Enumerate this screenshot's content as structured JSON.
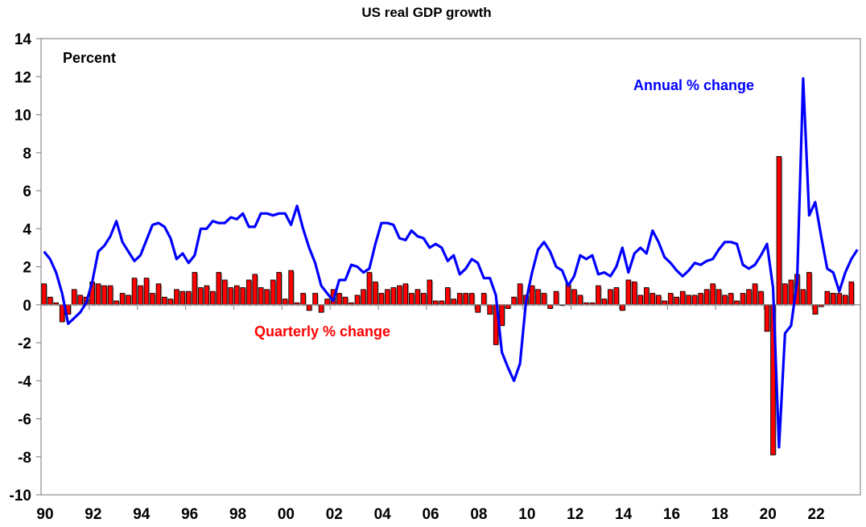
{
  "chart_data": {
    "type": "bar+line",
    "title": "US real GDP growth",
    "ylabel": "Percent",
    "xlabel": "",
    "ylim": [
      -10,
      14
    ],
    "yticks": [
      14,
      12,
      10,
      8,
      6,
      4,
      2,
      0,
      -2,
      -4,
      -6,
      -8,
      -10
    ],
    "ytick_labels": [
      "14",
      "12",
      "10",
      "8",
      "6",
      "4",
      "2",
      "0",
      "-2",
      "-4",
      "-6",
      "-8",
      "-10"
    ],
    "xlim": [
      1990,
      2024
    ],
    "xticks": [
      1990,
      1992,
      1994,
      1996,
      1998,
      2000,
      2002,
      2004,
      2006,
      2008,
      2010,
      2012,
      2014,
      2016,
      2018,
      2020,
      2022,
      2024
    ],
    "xtick_labels": [
      "90",
      "92",
      "94",
      "96",
      "98",
      "00",
      "02",
      "04",
      "06",
      "08",
      "10",
      "12",
      "14",
      "16",
      "18",
      "20",
      "22",
      ""
    ],
    "grid": false,
    "start_quarter": "1990Q1",
    "end_quarter": "2023Q3",
    "series": [
      {
        "name": "Quarterly % change",
        "kind": "bar",
        "color": "#ff0000",
        "label_position": "below-zero-left-center",
        "values": [
          1.1,
          0.4,
          0.1,
          -0.9,
          -0.5,
          0.8,
          0.5,
          0.4,
          1.2,
          1.1,
          1.0,
          1.0,
          0.2,
          0.6,
          0.5,
          1.4,
          1.0,
          1.4,
          0.6,
          1.1,
          0.4,
          0.3,
          0.8,
          0.7,
          0.7,
          1.7,
          0.9,
          1.0,
          0.7,
          1.7,
          1.3,
          0.9,
          1.0,
          0.9,
          1.3,
          1.6,
          0.9,
          0.8,
          1.3,
          1.7,
          0.3,
          1.8,
          0.1,
          0.6,
          -0.3,
          0.6,
          -0.4,
          0.3,
          0.8,
          0.6,
          0.4,
          0.1,
          0.5,
          0.8,
          1.7,
          1.2,
          0.6,
          0.8,
          0.9,
          1.0,
          1.1,
          0.6,
          0.8,
          0.6,
          1.3,
          0.2,
          0.2,
          0.9,
          0.3,
          0.6,
          0.6,
          0.6,
          -0.4,
          0.6,
          -0.5,
          -2.1,
          -1.1,
          -0.2,
          0.4,
          1.1,
          0.5,
          1.0,
          0.8,
          0.6,
          -0.2,
          0.7,
          0.0,
          1.1,
          0.8,
          0.5,
          0.1,
          0.1,
          1.0,
          0.3,
          0.8,
          0.9,
          -0.3,
          1.3,
          1.2,
          0.5,
          0.9,
          0.6,
          0.5,
          0.2,
          0.6,
          0.4,
          0.7,
          0.5,
          0.5,
          0.6,
          0.8,
          1.1,
          0.8,
          0.5,
          0.6,
          0.2,
          0.6,
          0.8,
          1.1,
          0.7,
          -1.4,
          -7.9,
          7.8,
          1.1,
          1.3,
          1.6,
          0.8,
          1.7,
          -0.5,
          -0.1,
          0.7,
          0.6,
          0.6,
          0.5,
          1.2
        ]
      },
      {
        "name": "Annual % change",
        "kind": "line",
        "color": "#0000ff",
        "label_position": "top-right",
        "values": [
          2.8,
          2.4,
          1.7,
          0.6,
          -1.0,
          -0.7,
          -0.4,
          0.1,
          1.2,
          2.8,
          3.1,
          3.6,
          4.4,
          3.3,
          2.8,
          2.3,
          2.6,
          3.4,
          4.2,
          4.3,
          4.1,
          3.5,
          2.4,
          2.7,
          2.2,
          2.6,
          4.0,
          4.0,
          4.4,
          4.3,
          4.3,
          4.6,
          4.5,
          4.8,
          4.1,
          4.1,
          4.8,
          4.8,
          4.7,
          4.8,
          4.8,
          4.2,
          5.2,
          4.0,
          3.0,
          2.2,
          1.0,
          0.6,
          0.2,
          1.3,
          1.3,
          2.1,
          2.0,
          1.7,
          1.9,
          3.2,
          4.3,
          4.3,
          4.2,
          3.5,
          3.4,
          3.9,
          3.6,
          3.5,
          3.0,
          3.2,
          3.0,
          2.3,
          2.6,
          1.6,
          1.9,
          2.4,
          2.2,
          1.4,
          1.4,
          0.5,
          -2.5,
          -3.3,
          -4.0,
          -3.1,
          0.2,
          1.7,
          2.9,
          3.3,
          2.8,
          2.0,
          1.8,
          1.0,
          1.5,
          2.6,
          2.4,
          2.6,
          1.6,
          1.7,
          1.5,
          2.0,
          3.0,
          1.7,
          2.7,
          3.0,
          2.7,
          3.9,
          3.3,
          2.5,
          2.2,
          1.8,
          1.5,
          1.8,
          2.2,
          2.1,
          2.3,
          2.4,
          2.9,
          3.3,
          3.3,
          3.2,
          2.1,
          1.9,
          2.1,
          2.6,
          3.2,
          0.9,
          -7.5,
          -1.5,
          -1.1,
          1.2,
          11.9,
          4.7,
          5.4,
          3.6,
          1.9,
          1.7,
          0.7,
          1.7,
          2.4,
          2.9
        ]
      }
    ],
    "annotations": [
      {
        "text": "Percent",
        "color": "#000000"
      },
      {
        "text": "Annual % change",
        "color": "#0000ff"
      },
      {
        "text": "Quarterly % change",
        "color": "#ff0000"
      }
    ]
  }
}
